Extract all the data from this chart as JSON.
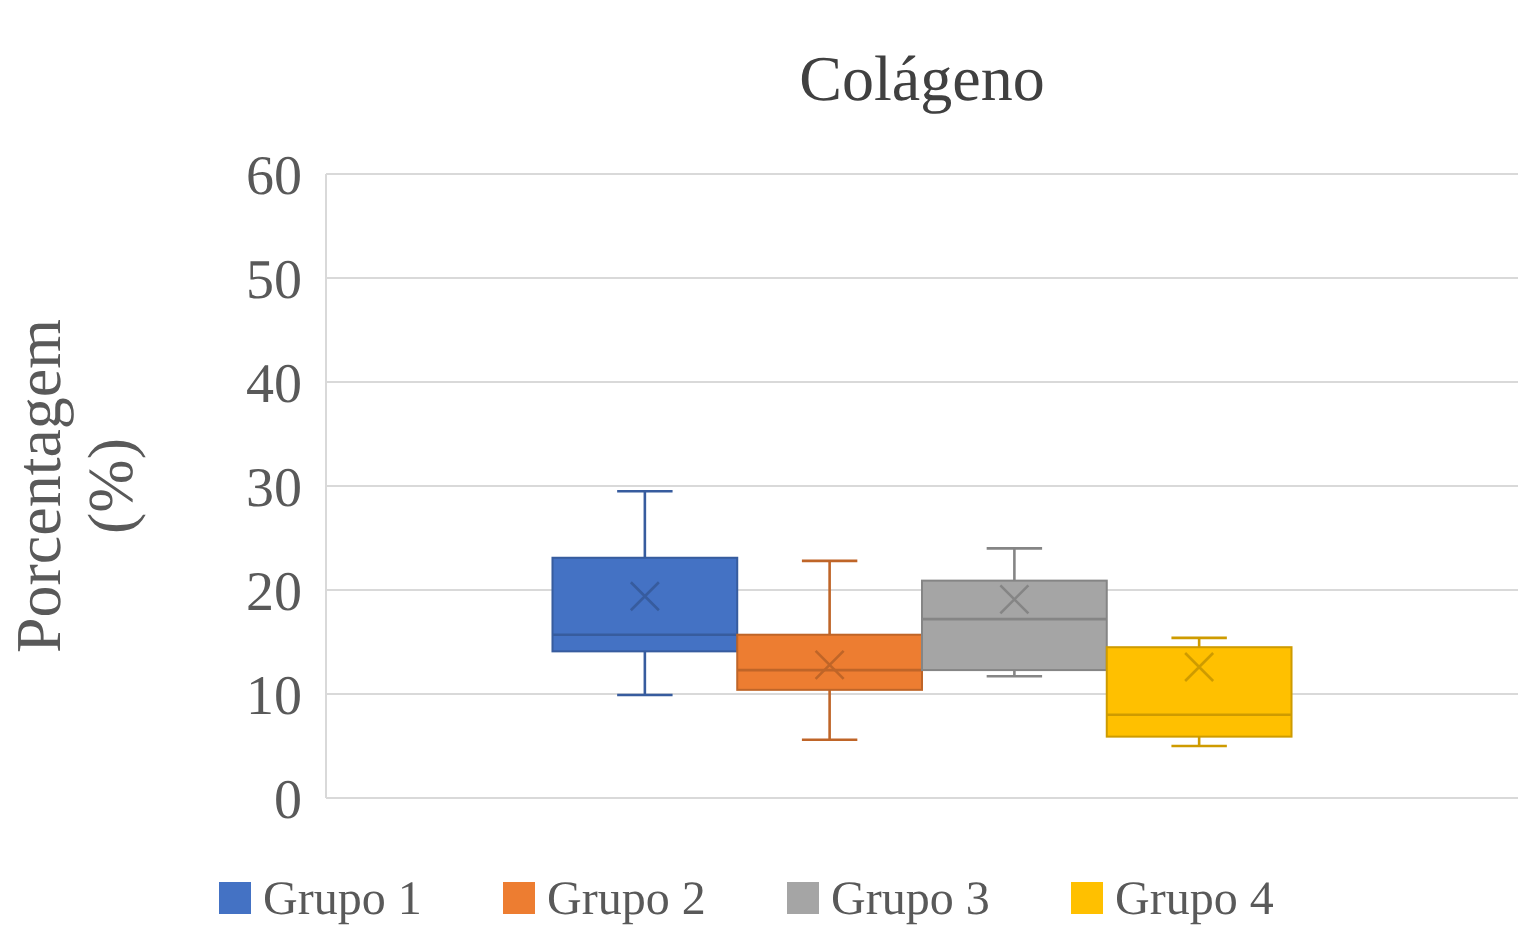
{
  "chart_data": {
    "type": "box",
    "title": "Colágeno",
    "ylabel": "Porcentagem\n(%)",
    "categories": [
      null
    ],
    "ylim": [
      0,
      60
    ],
    "yticks": [
      0,
      10,
      20,
      30,
      40,
      50,
      60
    ],
    "grid": "y",
    "legend": "bottom",
    "marker": "cross",
    "series": [
      {
        "name": "Grupo 1",
        "color": "#4472c4",
        "boxes": [
          {
            "low": 9.9,
            "q1": 14.1,
            "median": 15.7,
            "q3": 23.1,
            "high": 29.5,
            "mean": 19.4
          }
        ]
      },
      {
        "name": "Grupo 2",
        "color": "#ed7d31",
        "boxes": [
          {
            "low": 5.6,
            "q1": 10.4,
            "median": 12.3,
            "q3": 15.7,
            "high": 22.8,
            "mean": 12.8
          }
        ]
      },
      {
        "name": "Grupo 3",
        "color": "#a5a5a5",
        "boxes": [
          {
            "low": 11.7,
            "q1": 12.3,
            "median": 17.2,
            "q3": 20.9,
            "high": 24.0,
            "mean": 19.1
          }
        ]
      },
      {
        "name": "Grupo 4",
        "color": "#ffc000",
        "boxes": [
          {
            "low": 5.0,
            "q1": 5.9,
            "median": 8.0,
            "q3": 14.5,
            "high": 15.4,
            "mean": 12.6
          }
        ]
      }
    ]
  }
}
